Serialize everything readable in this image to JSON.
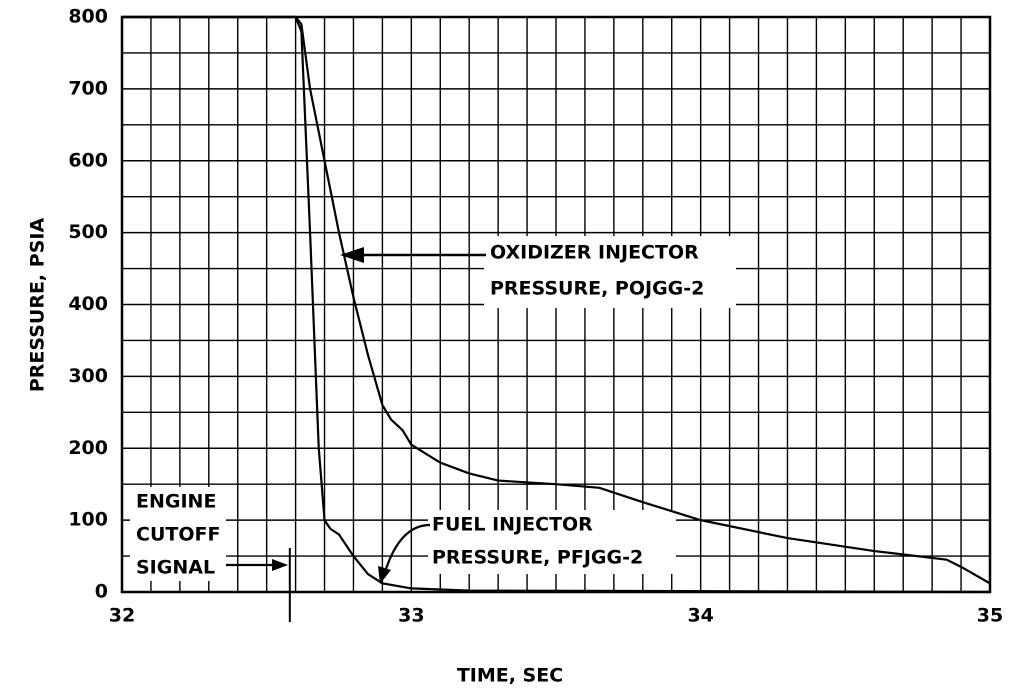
{
  "chart_data": {
    "type": "line",
    "xlabel": "TIME, SEC",
    "ylabel": "PRESSURE, PSIA",
    "xlim": [
      32,
      35
    ],
    "xticks": [
      32,
      33,
      34,
      35
    ],
    "ylim": [
      0,
      800
    ],
    "yticks": [
      0,
      100,
      200,
      300,
      400,
      500,
      600,
      700,
      800
    ],
    "grid": true,
    "series": [
      {
        "label": [
          "OXIDIZER INJECTOR",
          "PRESSURE, POJGG-2"
        ],
        "color": "#000000",
        "x": [
          32.0,
          32.6,
          32.62,
          32.65,
          32.7,
          32.75,
          32.8,
          32.85,
          32.9,
          32.93,
          32.97,
          33.0,
          33.1,
          33.2,
          33.3,
          33.5,
          33.65,
          33.8,
          34.0,
          34.3,
          34.6,
          34.85,
          34.9,
          35.0
        ],
        "values": [
          800,
          800,
          790,
          700,
          600,
          500,
          410,
          330,
          260,
          240,
          225,
          205,
          180,
          165,
          155,
          150,
          145,
          125,
          100,
          75,
          57,
          45,
          35,
          12
        ]
      },
      {
        "label": [
          "FUEL INJECTOR",
          "PRESSURE, PFJGG-2"
        ],
        "color": "#000000",
        "x": [
          32.0,
          32.6,
          32.62,
          32.65,
          32.68,
          32.7,
          32.72,
          32.75,
          32.8,
          32.85,
          32.9,
          33.0,
          33.2,
          35.0
        ],
        "values": [
          800,
          800,
          780,
          500,
          200,
          100,
          88,
          80,
          50,
          25,
          12,
          5,
          2,
          0
        ]
      }
    ],
    "cutoff": {
      "x": 32.58,
      "label": [
        "ENGINE",
        "CUTOFF",
        "SIGNAL"
      ]
    }
  }
}
